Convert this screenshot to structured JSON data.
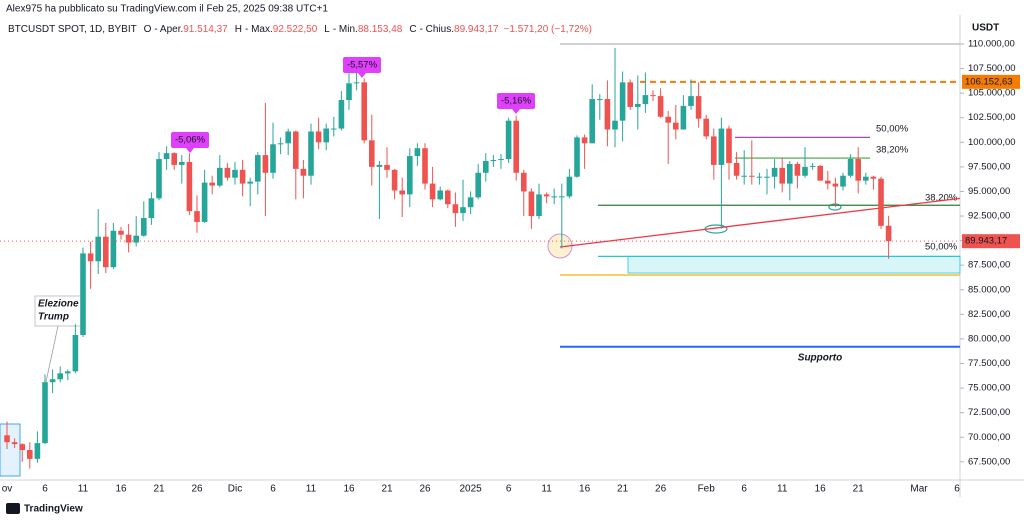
{
  "header": {
    "author_line": "Alex975 ha pubblicato su TradingView.com il Feb 25, 2025 09:38 UTC+1"
  },
  "footer": {
    "brand": "TradingView"
  },
  "chart_data": {
    "type": "candlestick",
    "symbol": "BTCUSDT SPOT, 1D, BYBIT",
    "ohlc_legend": [
      {
        "key": "O",
        "name": "- Aper.",
        "value": "91.514,37"
      },
      {
        "key": "H",
        "name": "- Max.",
        "value": "92.522,50"
      },
      {
        "key": "L",
        "name": "- Min.",
        "value": "88.153,48"
      },
      {
        "key": "C",
        "name": "- Chius.",
        "value": "89.943,17"
      }
    ],
    "change": "−1.571,20 (−1,72%)",
    "currency": "USDT",
    "up_color": "#26a69a",
    "down_color": "#ef5350",
    "categories": [
      "ov",
      null,
      null,
      null,
      null,
      "6",
      null,
      null,
      null,
      null,
      "11",
      null,
      null,
      null,
      null,
      "16",
      null,
      null,
      null,
      null,
      "21",
      null,
      null,
      null,
      null,
      "26",
      null,
      null,
      null,
      null,
      "Dic",
      null,
      null,
      null,
      null,
      "6",
      null,
      null,
      null,
      null,
      "11",
      null,
      null,
      null,
      null,
      "16",
      null,
      null,
      null,
      null,
      "21",
      null,
      null,
      null,
      null,
      "26",
      null,
      null,
      null,
      null,
      null,
      "2025",
      null,
      null,
      null,
      null,
      "6",
      null,
      null,
      null,
      null,
      "11",
      null,
      null,
      null,
      null,
      "16",
      null,
      null,
      null,
      null,
      "21",
      null,
      null,
      null,
      null,
      "26",
      null,
      null,
      null,
      null,
      null,
      "Feb",
      null,
      null,
      null,
      null,
      "6",
      null,
      null,
      null,
      null,
      "11",
      null,
      null,
      null,
      null,
      "16",
      null,
      null,
      null,
      null,
      "21",
      null,
      null,
      null,
      null,
      null,
      null,
      null,
      "Mar",
      null,
      null,
      null,
      null,
      "6"
    ],
    "open": [
      70200,
      69500,
      69300,
      68700,
      67800,
      69400,
      75600,
      75900,
      76500,
      76700,
      80400,
      88700,
      87900,
      90400,
      87300,
      91000,
      90600,
      89800,
      90500,
      92300,
      94300,
      98300,
      98900,
      97700,
      98000,
      93000,
      91900,
      95900,
      95600,
      97400,
      96400,
      97200,
      95800,
      96000,
      98700,
      96900,
      99800,
      99900,
      101100,
      97300,
      96600,
      101100,
      100000,
      101400,
      101400,
      104300,
      106000,
      106100,
      100200,
      97500,
      97700,
      97200,
      95100,
      94700,
      98600,
      99400,
      95800,
      94200,
      95100,
      93700,
      92800,
      93400,
      94400,
      96900,
      98100,
      98200,
      98300,
      102200,
      96900,
      95000,
      92500,
      94700,
      94500,
      94500,
      94500,
      96500,
      100500,
      99900,
      104400,
      104400,
      101300,
      102200,
      106100,
      103600,
      103900,
      104800,
      104700,
      102600,
      102000,
      101300,
      103700,
      104700,
      102400,
      100600,
      97700,
      101400,
      97900,
      96600,
      96600,
      96500,
      96500,
      96500,
      97400,
      95800,
      97800,
      96600,
      97500,
      97600,
      96100,
      95800,
      95500,
      96600,
      98300,
      96100,
      96500,
      96300,
      91514.37,
      null,
      null,
      null,
      null,
      null,
      null,
      null,
      null,
      null
    ],
    "high": [
      71600,
      69900,
      69400,
      69500,
      70600,
      76400,
      76900,
      77200,
      76900,
      81500,
      89300,
      89900,
      93200,
      91800,
      91800,
      91400,
      91700,
      92500,
      94000,
      94900,
      99000,
      99600,
      99000,
      98700,
      98900,
      94600,
      97200,
      96600,
      98700,
      97900,
      98000,
      98200,
      96400,
      99000,
      104000,
      102000,
      100500,
      101400,
      101200,
      98200,
      101900,
      102500,
      101900,
      102600,
      105200,
      107800,
      108300,
      106500,
      102800,
      98100,
      99500,
      97300,
      96400,
      99400,
      99900,
      99900,
      97500,
      95500,
      95200,
      94900,
      96200,
      95000,
      97800,
      98900,
      98700,
      98800,
      102500,
      102700,
      97200,
      95300,
      95800,
      94900,
      95300,
      95800,
      97300,
      100700,
      100800,
      105900,
      104900,
      106300,
      109600,
      107200,
      106400,
      106800,
      107100,
      105300,
      105500,
      103200,
      103800,
      104800,
      106400,
      106100,
      102800,
      101400,
      102500,
      101700,
      99000,
      99200,
      100200,
      96900,
      97300,
      98300,
      98400,
      98100,
      98000,
      99500,
      97900,
      97700,
      97100,
      96400,
      96900,
      98800,
      99500,
      96900,
      96600,
      96500,
      92522.5,
      null,
      null,
      null,
      null,
      null,
      null,
      null,
      null,
      null
    ],
    "low": [
      68800,
      68900,
      67500,
      66800,
      67400,
      69300,
      74500,
      75600,
      75800,
      76500,
      80200,
      85100,
      86600,
      86700,
      87100,
      90100,
      88800,
      89400,
      90400,
      91600,
      94100,
      97200,
      97200,
      95800,
      92600,
      90800,
      91800,
      94700,
      95400,
      96100,
      95700,
      94500,
      93500,
      94700,
      92500,
      96300,
      98800,
      98700,
      94200,
      94300,
      95700,
      99300,
      99200,
      100600,
      101200,
      103300,
      105300,
      99900,
      95600,
      92200,
      96400,
      94200,
      92400,
      93400,
      97600,
      95200,
      93400,
      94100,
      93300,
      91400,
      92000,
      92700,
      94200,
      96000,
      97500,
      97300,
      97900,
      96100,
      92500,
      91200,
      92200,
      93800,
      93700,
      89200,
      94300,
      96400,
      97300,
      99900,
      102300,
      99600,
      99500,
      100100,
      103300,
      101300,
      103000,
      104200,
      102500,
      97800,
      100300,
      101300,
      103300,
      101500,
      100300,
      96200,
      91200,
      96200,
      96200,
      95700,
      95700,
      95700,
      94700,
      95300,
      94900,
      94100,
      95300,
      96400,
      97200,
      96100,
      95200,
      93400,
      95100,
      96400,
      94800,
      95700,
      95200,
      91200,
      88153.48,
      null,
      null,
      null,
      null,
      null,
      null,
      null,
      null,
      null
    ],
    "close": [
      69500,
      69300,
      68700,
      67800,
      69400,
      75600,
      75900,
      76500,
      76700,
      80400,
      88700,
      87900,
      90400,
      87300,
      91000,
      90600,
      89800,
      90500,
      92300,
      94300,
      98300,
      98900,
      97700,
      98000,
      93000,
      91900,
      95900,
      95600,
      97400,
      96400,
      97200,
      95800,
      96000,
      98700,
      96900,
      99800,
      99900,
      101100,
      97300,
      96600,
      101100,
      100000,
      101400,
      101400,
      104300,
      106000,
      106100,
      100200,
      97500,
      97700,
      97200,
      95100,
      94700,
      98600,
      99400,
      95800,
      94200,
      95100,
      93700,
      92800,
      93400,
      94400,
      96900,
      98100,
      98200,
      98300,
      102200,
      96900,
      95000,
      92500,
      94700,
      94500,
      94500,
      94500,
      96500,
      100500,
      99900,
      104400,
      104400,
      101300,
      102200,
      106100,
      103600,
      103900,
      104800,
      104700,
      102600,
      102000,
      101300,
      103700,
      104700,
      102400,
      100600,
      97700,
      101400,
      97900,
      96600,
      96600,
      96500,
      96500,
      96500,
      97400,
      95800,
      97800,
      96600,
      97500,
      97600,
      96100,
      95800,
      95500,
      96600,
      98300,
      96100,
      96500,
      96300,
      91500,
      89943.17,
      null,
      null,
      null,
      null,
      null,
      null,
      null,
      null,
      null
    ],
    "last_price_label": "89.943,17",
    "ylim": [
      65650,
      112950
    ],
    "yticks": [
      {
        "value": 67500,
        "label": "67.500,00"
      },
      {
        "value": 70000,
        "label": "70.000,00"
      },
      {
        "value": 72500,
        "label": "72.500,00"
      },
      {
        "value": 75000,
        "label": "75.000,00"
      },
      {
        "value": 77500,
        "label": "77.500,00"
      },
      {
        "value": 80000,
        "label": "80.000,00"
      },
      {
        "value": 82500,
        "label": "82.500,00"
      },
      {
        "value": 85000,
        "label": "85.000,00"
      },
      {
        "value": 87500,
        "label": "87.500,00"
      },
      {
        "value": 90000,
        "label": "90.000,00"
      },
      {
        "value": 92500,
        "label": "92.500,00"
      },
      {
        "value": 95000,
        "label": "95.000,00"
      },
      {
        "value": 97500,
        "label": "97.500,00"
      },
      {
        "value": 100000,
        "label": "100.000,00"
      },
      {
        "value": 102500,
        "label": "102.500,00"
      },
      {
        "value": 105000,
        "label": "105.000,00"
      },
      {
        "value": 107500,
        "label": "107.500,00"
      },
      {
        "value": 110000,
        "label": "110.000,00"
      }
    ],
    "grid": false,
    "levels": [
      {
        "value": 110000,
        "color": "#b2b5be"
      },
      {
        "value": 106152.63,
        "label": "106.152,63",
        "color": "#f57c00",
        "style": "dashed",
        "label_on_axis": true
      },
      {
        "value": 100500,
        "label": "50,00%",
        "color": "#ab47bc"
      },
      {
        "value": 98400,
        "label": "38,20%",
        "color": "#43a047"
      },
      {
        "value": 93600,
        "label": "38,20%",
        "color": "#2e7d32"
      },
      {
        "value": 88400,
        "label": "50,00%",
        "color": "#26c6da"
      },
      {
        "value": 86500,
        "color": "#f0b400"
      },
      {
        "value": 79200,
        "label": "Supporto",
        "color": "#2962ff",
        "width": 2
      }
    ],
    "trendline": {
      "values": [
        89350,
        94300
      ],
      "color": "#f23645"
    },
    "percent_labels": [
      "-5,06%",
      "-5,57%",
      "-5,16%"
    ],
    "percent_label_color": "#e040fb",
    "note": [
      "Elezione",
      "Trump"
    ]
  }
}
